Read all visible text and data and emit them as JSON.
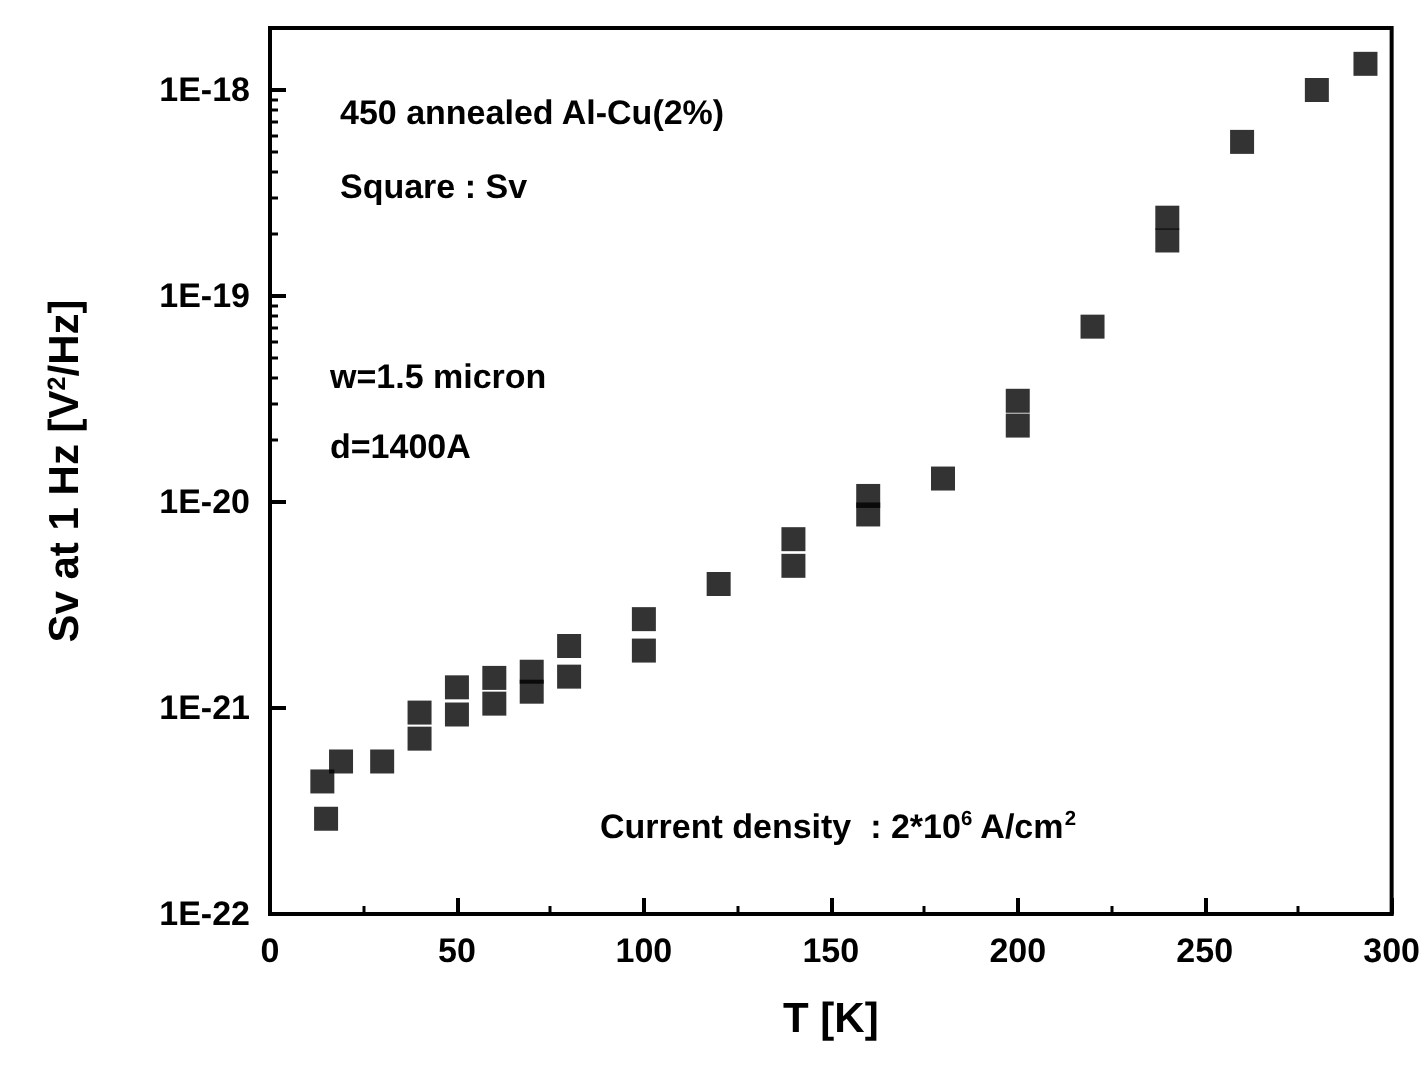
{
  "chart_data": {
    "type": "scatter",
    "xlabel": "T [K]",
    "ylabel": "Sv at 1 Hz [V$^{2}$/Hz]",
    "annotations": [
      "450 annealed Al-Cu(2%)",
      "Square : Sv",
      "w=1.5 micron",
      "d=1400A",
      "Current density  : 2*10$^{6}$ A/cm$^{2}$"
    ],
    "series": [
      {
        "color": "#000000",
        "x": [
          14,
          15,
          19,
          30,
          40,
          40,
          50,
          50,
          60,
          60,
          70,
          70,
          80,
          80,
          100,
          100,
          120,
          140,
          140,
          160,
          160,
          180,
          200,
          200,
          220,
          240,
          240,
          260,
          280,
          293
        ],
        "values": [
          4.4e-22,
          2.9e-22,
          5.5e-22,
          5.5e-22,
          9.5e-22,
          7.1e-22,
          1.26e-21,
          9.3e-22,
          1.4e-21,
          1.05e-21,
          1.5e-21,
          1.2e-21,
          2e-21,
          1.42e-21,
          2.7e-21,
          1.9e-21,
          4e-21,
          6.6e-21,
          4.9e-21,
          1.07e-20,
          8.7e-21,
          1.3e-20,
          3.1e-20,
          2.35e-20,
          7.1e-20,
          2.4e-19,
          1.86e-19,
          5.6e-19,
          1e-18,
          1.34e-18
        ]
      }
    ],
    "xlim": [
      0,
      300
    ],
    "xticks": [
      0,
      50,
      100,
      150,
      200,
      250,
      300
    ],
    "ylim": [
      1e-22,
      2e-18
    ],
    "log": true,
    "yticks": [
      {
        "value": 1e-22,
        "label": "1E-22"
      },
      {
        "value": 1e-21,
        "label": "1E-21"
      },
      {
        "value": 1e-20,
        "label": "1E-20"
      },
      {
        "value": 1e-19,
        "label": "1E-19"
      },
      {
        "value": 1e-18,
        "label": "1E-18"
      }
    ],
    "marker": "square",
    "grid": false
  }
}
